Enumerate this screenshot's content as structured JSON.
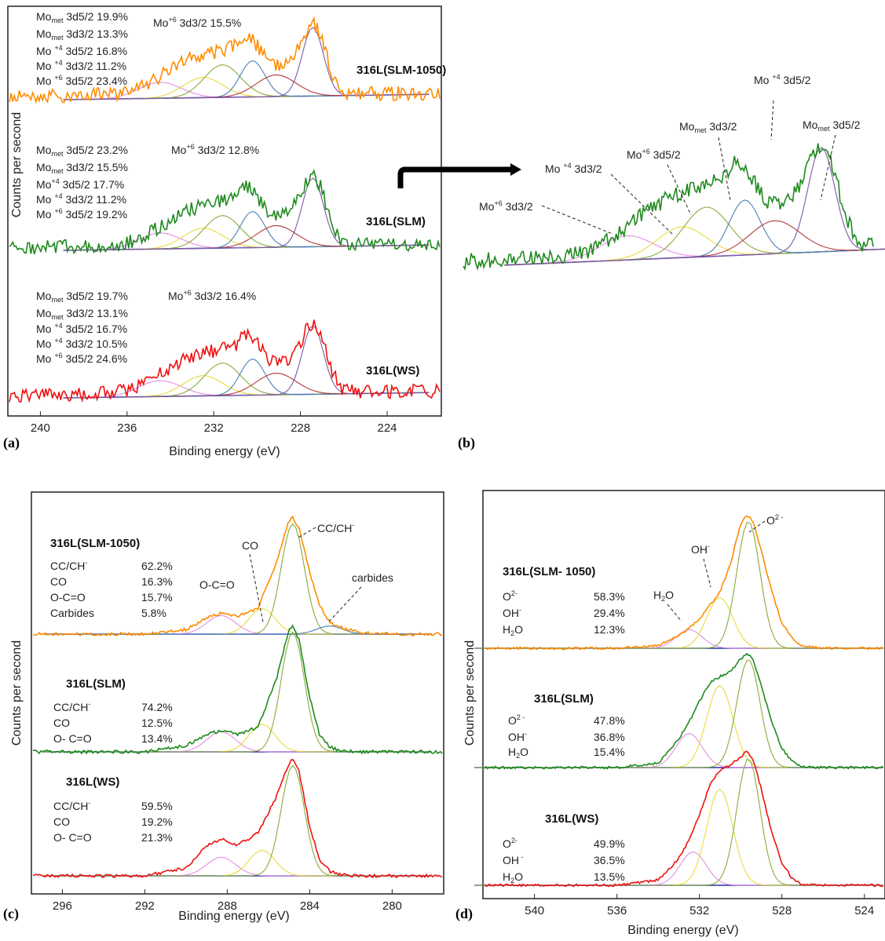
{
  "colors": {
    "SLM-1050": "#ff8c00",
    "SLM": "#1f8a1f",
    "WS": "#ee1111",
    "background": "#2233aa",
    "envelope": "#9933aa",
    "components": [
      "#e58ee5",
      "#e8dc3c",
      "#8aab3c",
      "#4a7fb5",
      "#b33a3a",
      "#7d5aa8"
    ]
  },
  "chart_data": [
    {
      "id": "a",
      "panel_label": "(a)",
      "type": "line",
      "xlabel": "Binding energy (eV)",
      "ylabel": "Counts per second",
      "xlim": [
        241.5,
        221.5
      ],
      "xticks": [
        240,
        236,
        232,
        228,
        224
      ],
      "series": [
        {
          "name": "316L(SLM-1050)",
          "color": "SLM-1050",
          "x": [
            239,
            237,
            236,
            235,
            234,
            233,
            232,
            231,
            230.5,
            230,
            229.5,
            229,
            228.5,
            228,
            227.6,
            227.3,
            227,
            226.5,
            226,
            225,
            224,
            222
          ],
          "y": [
            0.05,
            0.06,
            0.09,
            0.22,
            0.4,
            0.55,
            0.62,
            0.7,
            0.86,
            0.72,
            0.5,
            0.44,
            0.5,
            0.7,
            0.95,
            0.99,
            0.8,
            0.3,
            0.05,
            0.02,
            0.02,
            0.02
          ],
          "annotations": [
            "Mo met 3d5/2 19.9%",
            "Mo met 3d3/2 13.3%",
            "Mo +4 3d5/2 16.8%",
            "Mo +4 3d3/2 11.2%",
            "Mo +6 3d5/2 23.4%",
            "Mo +6 3d3/2 15.5%"
          ]
        },
        {
          "name": "316L(SLM)",
          "color": "SLM",
          "x": [
            239,
            237,
            236,
            235,
            234,
            233,
            232,
            231,
            230.5,
            230,
            229.5,
            229,
            228.5,
            228,
            227.6,
            227.3,
            227,
            226.5,
            226,
            225,
            224,
            222
          ],
          "y": [
            0.05,
            0.06,
            0.09,
            0.22,
            0.4,
            0.55,
            0.62,
            0.7,
            0.86,
            0.72,
            0.5,
            0.44,
            0.5,
            0.7,
            0.95,
            0.99,
            0.8,
            0.3,
            0.05,
            0.02,
            0.02,
            0.02
          ],
          "annotations": [
            "Mo met 3d5/2 23.2%",
            "Mo met 3d3/2 15.5%",
            "Mo +4 3d5/2 17.7%",
            "Mo +4 3d3/2 11.2%",
            "Mo +6 3d5/2 19.2%",
            "Mo +6 3d3/2 12.8%"
          ]
        },
        {
          "name": "316L(WS)",
          "color": "WS",
          "x": [
            239,
            237,
            236,
            235,
            234,
            233,
            232,
            231,
            230.5,
            230,
            229.5,
            229,
            228.5,
            228,
            227.6,
            227.3,
            227,
            226.5,
            226,
            225,
            224,
            222
          ],
          "y": [
            0.05,
            0.06,
            0.09,
            0.22,
            0.4,
            0.55,
            0.62,
            0.7,
            0.86,
            0.72,
            0.5,
            0.44,
            0.5,
            0.7,
            0.95,
            0.99,
            0.8,
            0.3,
            0.05,
            0.02,
            0.02,
            0.02
          ],
          "annotations": [
            "Mo met 3d5/2 19.7%",
            "Mo met 3d3/2 13.1%",
            "Mo +4 3d5/2 16.7%",
            "Mo +4 3d3/2 10.5%",
            "Mo +6 3d5/2 24.6%",
            "Mo +6 3d3/2 16.4%"
          ]
        }
      ]
    },
    {
      "id": "b",
      "panel_label": "(b)",
      "type": "line",
      "series": [
        {
          "name": "316L(SLM)",
          "color": "SLM",
          "x": [
            239,
            237,
            236,
            235,
            234,
            233,
            232,
            231,
            230.5,
            230,
            229.5,
            229,
            228.5,
            228,
            227.6,
            227.3,
            227,
            226.5,
            226,
            225,
            224,
            222
          ],
          "y": [
            0.05,
            0.06,
            0.09,
            0.22,
            0.4,
            0.55,
            0.62,
            0.7,
            0.86,
            0.72,
            0.5,
            0.44,
            0.5,
            0.7,
            0.95,
            0.99,
            0.8,
            0.3,
            0.05,
            0.02,
            0.02,
            0.02
          ]
        }
      ],
      "annotations": [
        "Mo +6 3d3/2",
        "Mo +4 3d3/2",
        "Mo +6 3d5/2",
        "Mo met 3d3/2",
        "Mo +4 3d5/2",
        "Mo met 3d5/2"
      ]
    },
    {
      "id": "c",
      "panel_label": "(c)",
      "type": "line",
      "xlabel": "Binding energy (eV)",
      "ylabel": "Counts per second",
      "xlim": [
        297.5,
        277.5
      ],
      "xticks": [
        296,
        292,
        288,
        284,
        280
      ],
      "series": [
        {
          "name": "316L(SLM-1050)",
          "color": "SLM-1050",
          "x": [
            297,
            292,
            290,
            289,
            288.3,
            287.5,
            286.5,
            285.6,
            285,
            284.8,
            284.5,
            284,
            283.5,
            283,
            282.3,
            281.5,
            280,
            278
          ],
          "y": [
            0.0,
            0.0,
            0.04,
            0.14,
            0.18,
            0.15,
            0.22,
            0.62,
            0.97,
            1.0,
            0.92,
            0.55,
            0.25,
            0.1,
            0.05,
            0.01,
            0.0,
            0.0
          ],
          "annotations": [
            "CC/CH- 62.2%",
            "CO 16.3%",
            "O-C=O 15.7%",
            "Carbides 5.8%",
            "O-C=O",
            "CO",
            "CC/CH-",
            "carbides"
          ]
        },
        {
          "name": "316L(SLM)",
          "color": "SLM",
          "x": [
            297,
            292,
            290,
            289,
            288.3,
            287.5,
            286.5,
            285.6,
            285,
            284.8,
            284.5,
            284,
            283.5,
            283,
            282.5,
            281.5,
            280,
            278
          ],
          "y": [
            0.0,
            0.0,
            0.05,
            0.14,
            0.17,
            0.14,
            0.2,
            0.58,
            0.96,
            1.0,
            0.9,
            0.45,
            0.14,
            0.04,
            0.01,
            0.0,
            0.0,
            0.0
          ],
          "annotations": [
            "CC/CH- 74.2%",
            "CO 12.5%",
            "O-C=O 13.4%"
          ]
        },
        {
          "name": "316L(WS)",
          "color": "WS",
          "x": [
            297,
            292,
            290,
            289,
            288.3,
            287.5,
            286.5,
            285.6,
            285,
            284.8,
            284.5,
            284,
            283.5,
            283,
            282.5,
            281.5,
            280,
            278
          ],
          "y": [
            0.0,
            0.0,
            0.07,
            0.26,
            0.32,
            0.26,
            0.37,
            0.68,
            0.96,
            1.0,
            0.9,
            0.45,
            0.14,
            0.04,
            0.01,
            0.0,
            0.0,
            0.0
          ],
          "annotations": [
            "CC/CH- 59.5%",
            "CO 19.2%",
            "O-C=O 21.3%"
          ]
        }
      ]
    },
    {
      "id": "d",
      "panel_label": "(d)",
      "type": "line",
      "xlabel": "Binding energy (eV)",
      "ylabel": "Counts per second",
      "xlim": [
        542.5,
        523
      ],
      "xticks": [
        540,
        536,
        532,
        528,
        524
      ],
      "series": [
        {
          "name": "316L(SLM- 1050)",
          "color": "SLM-1050",
          "x": [
            543,
            536,
            534,
            533,
            532.5,
            532,
            531.5,
            531,
            530.5,
            530,
            529.7,
            529.4,
            529,
            528.5,
            528,
            527.5,
            527,
            526,
            523
          ],
          "y": [
            0.0,
            0.0,
            0.02,
            0.1,
            0.15,
            0.22,
            0.32,
            0.42,
            0.62,
            0.92,
            1.0,
            0.96,
            0.75,
            0.45,
            0.2,
            0.08,
            0.02,
            0.0,
            0.0
          ],
          "annotations": [
            "O2- 58.3%",
            "OH- 29.4%",
            "H2O 12.3%",
            "H2O",
            "OH-",
            "O2-"
          ]
        },
        {
          "name": "316L(SLM)",
          "color": "SLM",
          "x": [
            543,
            536,
            534,
            533,
            532.5,
            532,
            531.5,
            531,
            530.5,
            530,
            529.7,
            529.4,
            529,
            528.5,
            528,
            527.5,
            527,
            526,
            523
          ],
          "y": [
            0.0,
            0.0,
            0.04,
            0.25,
            0.4,
            0.58,
            0.74,
            0.8,
            0.84,
            0.95,
            1.0,
            0.96,
            0.74,
            0.42,
            0.18,
            0.06,
            0.01,
            0.0,
            0.0
          ],
          "annotations": [
            "O2- 47.8%",
            "OH- 36.8%",
            "H2O 15.4%"
          ]
        },
        {
          "name": "316L(WS)",
          "color": "WS",
          "x": [
            543,
            536,
            534,
            533,
            532.5,
            532,
            531.5,
            531,
            530.5,
            530,
            529.7,
            529.4,
            529,
            528.5,
            528,
            527.5,
            527,
            526,
            523
          ],
          "y": [
            0.0,
            0.0,
            0.04,
            0.2,
            0.34,
            0.52,
            0.75,
            0.86,
            0.9,
            0.96,
            1.0,
            0.96,
            0.74,
            0.42,
            0.18,
            0.06,
            0.01,
            0.0,
            0.0
          ],
          "annotations": [
            "O2- 49.9%",
            "OH- 36.5%",
            "H2O 13.5%"
          ]
        }
      ]
    }
  ],
  "text": {
    "a": {
      "s1": {
        "m1n": "Mo",
        "m1s": "met",
        "m1r": " 3d5/2 19.9%",
        "m2n": "Mo",
        "m2s": "met",
        "m2r": " 3d3/2 13.3%",
        "m3n": "Mo ",
        "m3s": "+4",
        "m3r": " 3d5/2  16.8%",
        "m4n": "Mo ",
        "m4s": "+4",
        "m4r": " 3d3/2  11.2%",
        "m5n": "Mo ",
        "m5s": "+6",
        "m5r": " 3d5/2  23.4%",
        "m6n": "Mo",
        "m6s": "+6",
        "m6r": " 3d3/2   15.5%"
      },
      "s2": {
        "m1n": "Mo",
        "m1s": "met",
        "m1r": " 3d5/2 23.2%",
        "m2n": "Mo",
        "m2s": "met",
        "m2r": " 3d3/2 15.5%",
        "m3n": "Mo",
        "m3s": "+4",
        "m3r": "  3d5/2   17.7%",
        "m4n": "Mo ",
        "m4s": "+4",
        "m4r": " 3d3/2   11.2%",
        "m5n": "Mo ",
        "m5s": "+6",
        "m5r": " 3d5/2   19.2%",
        "m6n": "Mo",
        "m6s": "+6",
        "m6r": " 3d3/2   12.8%"
      },
      "s3": {
        "m1n": "Mo",
        "m1s": "met",
        "m1r": " 3d5/2 19.7%",
        "m2n": "Mo",
        "m2s": "met",
        "m2r": " 3d3/2 13.1%",
        "m3n": "Mo ",
        "m3s": "+4",
        "m3r": " 3d5/2   16.7%",
        "m4n": "Mo ",
        "m4s": "+4",
        "m4r": " 3d3/2   10.5%",
        "m5n": "Mo ",
        "m5s": "+6",
        "m5r": " 3d5/2   24.6%",
        "m6n": "Mo",
        "m6s": "+6",
        "m6r": " 3d3/2   16.4%"
      }
    },
    "b": {
      "m1n": "Mo",
      "m1s": "+6",
      "m1r": " 3d3/2",
      "m2n": "Mo ",
      "m2s": "+4",
      "m2r": " 3d3/2",
      "m3n": "Mo",
      "m3s": "+6",
      "m3r": " 3d5/2",
      "m4n": "Mo",
      "m4s": "met",
      "m4r": " 3d3/2",
      "m5n": "Mo ",
      "m5s": "+4",
      "m5r": " 3d5/2",
      "m6n": "Mo",
      "m6s": "met",
      "m6r": " 3d5/2"
    },
    "c": {
      "lbl_cc": "CC/CH",
      "lbl_cc_sup": "-",
      "lbl_co": "CO",
      "lbl_occo": "O-C=O",
      "lbl_carb": "carbides",
      "s1": {
        "r1n": "CC/CH",
        "r1s": "-",
        "r1v": "62.2%",
        "r2n": "CO",
        "r2v": "16.3%",
        "r3n": "O-C=O",
        "r3v": "15.7%",
        "r4n": "Carbides",
        "r4v": "5.8%"
      },
      "s2": {
        "r1n": "CC/CH",
        "r1s": "-",
        "r1v": "74.2%",
        "r2n": "CO",
        "r2v": "12.5%",
        "r3n": "O- C=O",
        "r3v": "13.4%"
      },
      "s3": {
        "r1n": "CC/CH",
        "r1s": "-",
        "r1v": "59.5%",
        "r2n": "CO",
        "r2v": "19.2%",
        "r3n": "O- C=O",
        "r3v": "21.3%"
      }
    },
    "d": {
      "lbl_o2": "O",
      "lbl_o2_sup": "2 -",
      "lbl_oh": "OH",
      "lbl_oh_sup": "-",
      "lbl_h2o_a": "H",
      "lbl_h2o_sub": "2",
      "lbl_h2o_b": "O",
      "s1": {
        "r1n": "O",
        "r1s": "2-",
        "r1v": "58.3%",
        "r2n": "OH",
        "r2s": "-",
        "r2v": "29.4%",
        "r3a": "H",
        "r3sub": "2",
        "r3b": "O",
        "r3v": "12.3%"
      },
      "s2": {
        "r1n": "O",
        "r1s": "2 -",
        "r1v": "47.8%",
        "r2n": "OH",
        "r2s": "-",
        "r2v": "36.8%",
        "r3a": "H",
        "r3sub": "2",
        "r3b": "O",
        "r3v": "15.4%"
      },
      "s3": {
        "r1n": "O",
        "r1s": "2-",
        "r1v": "49.9%",
        "r2n": "OH",
        "r2s": " -",
        "r2v": "36.5%",
        "r3a": "H",
        "r3sub": "2",
        "r3b": "O",
        "r3v": "13.5%"
      }
    }
  }
}
